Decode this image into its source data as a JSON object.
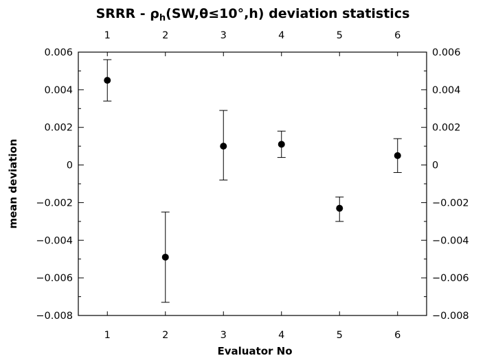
{
  "chart_data": {
    "type": "scatter",
    "title": "SRRR - ρh(SW,θ≤10°,h) deviation statistics",
    "title_parts": {
      "prefix": "SRRR - ρ",
      "subscript": "h",
      "suffix": "(SW,θ≤10°,h) deviation statistics"
    },
    "xlabel": "Evaluator No",
    "ylabel": "mean deviation",
    "xlim": [
      0.5,
      6.5
    ],
    "ylim": [
      -0.008,
      0.006
    ],
    "x_ticks": [
      1,
      2,
      3,
      4,
      5,
      6
    ],
    "x_tick_labels": [
      "1",
      "2",
      "3",
      "4",
      "5",
      "6"
    ],
    "y_ticks": [
      -0.008,
      -0.006,
      -0.004,
      -0.002,
      0,
      0.002,
      0.004,
      0.006
    ],
    "y_tick_labels": [
      "−0.008",
      "−0.006",
      "−0.004",
      "−0.002",
      "0",
      "0.002",
      "0.004",
      "0.006"
    ],
    "grid": false,
    "series": [
      {
        "x": [
          1,
          2,
          3,
          4,
          5,
          6
        ],
        "y": [
          0.0045,
          -0.0049,
          0.001,
          0.0011,
          -0.0023,
          0.0005
        ],
        "y_upper": [
          0.0056,
          -0.0025,
          0.0029,
          0.0018,
          -0.0017,
          0.0014
        ],
        "y_lower": [
          0.0034,
          -0.0073,
          -0.0008,
          0.0004,
          -0.003,
          -0.0004
        ]
      }
    ]
  }
}
